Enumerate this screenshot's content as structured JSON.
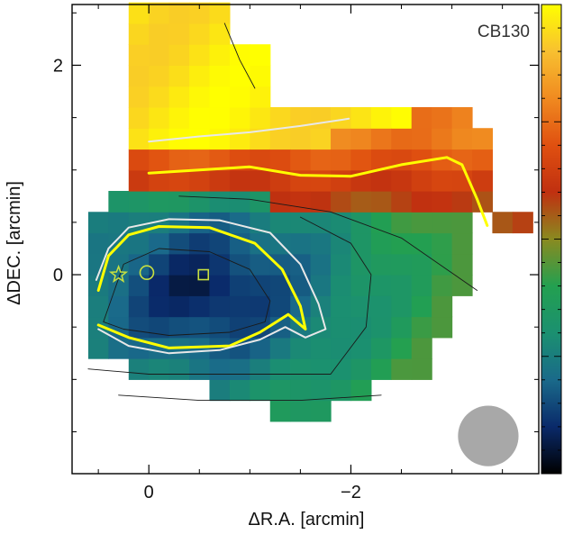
{
  "figure": {
    "label": "CB130",
    "xlabel": "ΔR.A. [arcmin]",
    "ylabel": "ΔDEC. [arcmin]"
  },
  "chart_data": {
    "type": "heatmap",
    "title": "",
    "label": "CB130",
    "xlabel": "ΔR.A. [arcmin]",
    "ylabel": "ΔDEC. [arcmin]",
    "x_ticks": [
      0,
      -2
    ],
    "x_tick_labels": [
      "0",
      "−2"
    ],
    "y_ticks": [
      2,
      0
    ],
    "y_tick_labels": [
      "2",
      "0"
    ],
    "xlim": [
      0.76,
      -3.86
    ],
    "ylim": [
      -1.9,
      2.58
    ],
    "colorbar": {
      "location": "right",
      "colors": [
        "#000000",
        "#0a2a6a",
        "#1a6a8a",
        "#1b9070",
        "#23a050",
        "#8a8a20",
        "#c03010",
        "#e05010",
        "#f08a20",
        "#f8c030",
        "#ffff00"
      ],
      "tick_labels": []
    },
    "beam": {
      "x": -3.36,
      "y": -1.54,
      "diameter": 0.6,
      "color": "#a8a8a8"
    },
    "markers": [
      {
        "kind": "star",
        "x": 0.3,
        "y": 0.0,
        "color": "#c8e040"
      },
      {
        "kind": "circle",
        "x": 0.02,
        "y": 0.02,
        "color": "#c8e040"
      },
      {
        "kind": "square",
        "x": -0.54,
        "y": 0.0,
        "color": "#c8e040"
      }
    ],
    "contours": [
      {
        "color": "#ffff00",
        "points": [
          [
            0.5,
            -0.15
          ],
          [
            0.4,
            0.18
          ],
          [
            0.2,
            0.38
          ],
          [
            -0.1,
            0.46
          ],
          [
            -0.6,
            0.45
          ],
          [
            -1.05,
            0.3
          ],
          [
            -1.32,
            0.05
          ],
          [
            -1.5,
            -0.3
          ],
          [
            -1.55,
            -0.52
          ],
          [
            -1.38,
            -0.38
          ],
          [
            -1.1,
            -0.55
          ],
          [
            -0.8,
            -0.68
          ],
          [
            -0.2,
            -0.7
          ],
          [
            0.2,
            -0.6
          ],
          [
            0.5,
            -0.48
          ]
        ]
      },
      {
        "color": "#e8e8e8",
        "points": [
          [
            0.52,
            -0.05
          ],
          [
            0.4,
            0.25
          ],
          [
            0.2,
            0.45
          ],
          [
            -0.2,
            0.53
          ],
          [
            -0.7,
            0.52
          ],
          [
            -1.2,
            0.4
          ],
          [
            -1.5,
            0.1
          ],
          [
            -1.68,
            -0.28
          ],
          [
            -1.75,
            -0.52
          ],
          [
            -1.55,
            -0.6
          ],
          [
            -1.35,
            -0.5
          ],
          [
            -1.1,
            -0.62
          ],
          [
            -0.7,
            -0.72
          ],
          [
            -0.2,
            -0.75
          ],
          [
            0.2,
            -0.68
          ],
          [
            0.5,
            -0.52
          ]
        ]
      },
      {
        "color": "#ffff00",
        "points": [
          [
            0.0,
            0.97
          ],
          [
            -0.5,
            1.0
          ],
          [
            -1.0,
            1.03
          ],
          [
            -1.5,
            0.95
          ],
          [
            -2.0,
            0.94
          ],
          [
            -2.5,
            1.05
          ],
          [
            -2.95,
            1.12
          ],
          [
            -3.1,
            1.05
          ],
          [
            -3.25,
            0.72
          ],
          [
            -3.35,
            0.47
          ]
        ]
      },
      {
        "color": "#e8e8e8",
        "points": [
          [
            0.0,
            1.27
          ],
          [
            -0.5,
            1.32
          ],
          [
            -1.0,
            1.36
          ],
          [
            -1.5,
            1.42
          ],
          [
            -1.98,
            1.49
          ]
        ]
      },
      {
        "color": "#1a1a1a",
        "points": [
          [
            0.45,
            -0.45
          ],
          [
            0.25,
            0.1
          ],
          [
            -0.1,
            0.25
          ],
          [
            -0.6,
            0.22
          ],
          [
            -1.0,
            0.05
          ],
          [
            -1.2,
            -0.25
          ],
          [
            -1.15,
            -0.45
          ],
          [
            -0.8,
            -0.55
          ],
          [
            -0.2,
            -0.58
          ],
          [
            0.25,
            -0.52
          ],
          [
            0.45,
            -0.45
          ]
        ]
      },
      {
        "color": "#1a1a1a",
        "points": [
          [
            0.6,
            -0.9
          ],
          [
            0.0,
            -0.95
          ],
          [
            -1.0,
            -0.95
          ],
          [
            -1.8,
            -0.95
          ],
          [
            -2.15,
            -0.5
          ],
          [
            -2.2,
            0.0
          ],
          [
            -2.0,
            0.3
          ],
          [
            -1.5,
            0.55
          ]
        ]
      },
      {
        "color": "#1a1a1a",
        "points": [
          [
            -0.3,
            0.75
          ],
          [
            -1.0,
            0.72
          ],
          [
            -1.8,
            0.6
          ],
          [
            -2.5,
            0.35
          ],
          [
            -2.95,
            0.05
          ],
          [
            -3.25,
            -0.15
          ]
        ]
      },
      {
        "color": "#1a1a1a",
        "points": [
          [
            0.3,
            -1.15
          ],
          [
            -0.5,
            -1.2
          ],
          [
            -1.5,
            -1.2
          ],
          [
            -2.3,
            -1.15
          ]
        ]
      },
      {
        "color": "#1a1a1a",
        "points": [
          [
            -0.75,
            2.4
          ],
          [
            -0.9,
            2.05
          ],
          [
            -1.05,
            1.78
          ]
        ]
      }
    ]
  }
}
